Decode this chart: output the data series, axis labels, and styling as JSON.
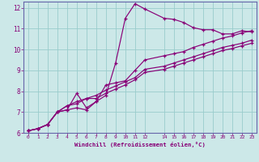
{
  "xlabel": "Windchill (Refroidissement éolien,°C)",
  "bg_color": "#cce8e8",
  "grid_color": "#99cccc",
  "line_color": "#880077",
  "spine_color": "#6666aa",
  "xlim": [
    -0.5,
    23.5
  ],
  "ylim": [
    6,
    12.3
  ],
  "xtick_labels": [
    "0",
    "1",
    "2",
    "3",
    "4",
    "5",
    "6",
    "7",
    "8",
    "9",
    "10",
    "11",
    "12",
    "14",
    "15",
    "16",
    "17",
    "18",
    "19",
    "20",
    "21",
    "22",
    "23"
  ],
  "xtick_positions": [
    0,
    1,
    2,
    3,
    4,
    5,
    6,
    7,
    8,
    9,
    10,
    11,
    12,
    14,
    15,
    16,
    17,
    18,
    19,
    20,
    21,
    22,
    23
  ],
  "yticks": [
    6,
    7,
    8,
    9,
    10,
    11,
    12
  ],
  "series": [
    {
      "x": [
        0,
        1,
        2,
        3,
        4,
        5,
        6,
        7,
        8,
        9,
        10,
        11,
        12,
        14,
        15,
        16,
        17,
        18,
        19,
        20,
        21,
        22,
        23
      ],
      "y": [
        6.1,
        6.2,
        6.4,
        7.0,
        7.1,
        7.9,
        7.2,
        7.5,
        7.8,
        9.35,
        11.5,
        12.2,
        11.95,
        11.5,
        11.45,
        11.3,
        11.05,
        10.95,
        10.95,
        10.75,
        10.75,
        10.9,
        10.85
      ]
    },
    {
      "x": [
        0,
        1,
        2,
        3,
        4,
        5,
        6,
        7,
        8,
        9,
        10,
        11,
        12,
        14,
        15,
        16,
        17,
        18,
        19,
        20,
        21,
        22,
        23
      ],
      "y": [
        6.1,
        6.2,
        6.4,
        7.0,
        7.1,
        7.2,
        7.1,
        7.5,
        8.3,
        8.4,
        8.5,
        9.0,
        9.5,
        9.7,
        9.8,
        9.9,
        10.1,
        10.25,
        10.4,
        10.55,
        10.65,
        10.8,
        10.9
      ]
    },
    {
      "x": [
        0,
        1,
        2,
        3,
        4,
        5,
        6,
        7,
        8,
        9,
        10,
        11,
        12,
        14,
        15,
        16,
        17,
        18,
        19,
        20,
        21,
        22,
        23
      ],
      "y": [
        6.1,
        6.2,
        6.4,
        7.0,
        7.3,
        7.5,
        7.65,
        7.8,
        8.05,
        8.25,
        8.45,
        8.65,
        9.05,
        9.2,
        9.35,
        9.5,
        9.65,
        9.8,
        9.95,
        10.1,
        10.2,
        10.3,
        10.45
      ]
    },
    {
      "x": [
        0,
        1,
        2,
        3,
        4,
        5,
        6,
        7,
        8,
        9,
        10,
        11,
        12,
        14,
        15,
        16,
        17,
        18,
        19,
        20,
        21,
        22,
        23
      ],
      "y": [
        6.1,
        6.2,
        6.4,
        7.0,
        7.3,
        7.4,
        7.65,
        7.65,
        7.9,
        8.1,
        8.3,
        8.55,
        8.9,
        9.05,
        9.2,
        9.35,
        9.5,
        9.65,
        9.8,
        9.95,
        10.05,
        10.18,
        10.3
      ]
    }
  ]
}
